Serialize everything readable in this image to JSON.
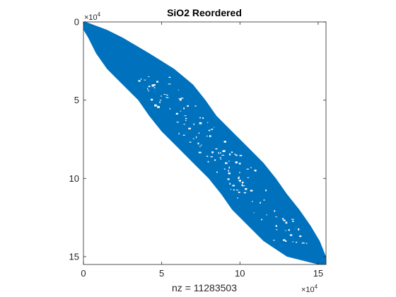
{
  "chart_data": {
    "type": "spy",
    "title": "SiO2 Reordered",
    "xlabel": "nz = 11283503",
    "ylabel": "",
    "x_multiplier": "×10",
    "x_multiplier_exp": "4",
    "y_multiplier": "×10",
    "y_multiplier_exp": "4",
    "xlim": [
      0,
      15.5
    ],
    "ylim": [
      0,
      15.5
    ],
    "y_reversed": true,
    "xticks": [
      {
        "value": 0,
        "label": "0"
      },
      {
        "value": 5,
        "label": "5"
      },
      {
        "value": 10,
        "label": "10"
      },
      {
        "value": 15,
        "label": "15"
      }
    ],
    "yticks": [
      {
        "value": 0,
        "label": "0"
      },
      {
        "value": 5,
        "label": "5"
      },
      {
        "value": 10,
        "label": "10"
      },
      {
        "value": 15,
        "label": "15"
      }
    ],
    "color": "#0072bd",
    "band_profile": [
      {
        "row": 0.0,
        "col_start": 0.0,
        "col_end": 0.15
      },
      {
        "row": 0.5,
        "col_start": 0.0,
        "col_end": 1.5
      },
      {
        "row": 1.0,
        "col_start": 0.3,
        "col_end": 2.5
      },
      {
        "row": 2.0,
        "col_start": 0.8,
        "col_end": 4.2
      },
      {
        "row": 3.0,
        "col_start": 1.5,
        "col_end": 5.8
      },
      {
        "row": 4.0,
        "col_start": 2.5,
        "col_end": 7.0
      },
      {
        "row": 5.0,
        "col_start": 3.5,
        "col_end": 7.8
      },
      {
        "row": 6.0,
        "col_start": 4.2,
        "col_end": 8.5
      },
      {
        "row": 7.0,
        "col_start": 5.0,
        "col_end": 9.5
      },
      {
        "row": 8.0,
        "col_start": 6.0,
        "col_end": 10.5
      },
      {
        "row": 9.0,
        "col_start": 7.0,
        "col_end": 11.5
      },
      {
        "row": 10.0,
        "col_start": 8.0,
        "col_end": 12.3
      },
      {
        "row": 11.0,
        "col_start": 8.8,
        "col_end": 13.0
      },
      {
        "row": 12.0,
        "col_start": 9.5,
        "col_end": 13.8
      },
      {
        "row": 13.0,
        "col_start": 10.5,
        "col_end": 14.5
      },
      {
        "row": 14.0,
        "col_start": 11.5,
        "col_end": 15.1
      },
      {
        "row": 15.0,
        "col_start": 13.0,
        "col_end": 15.5
      },
      {
        "row": 15.5,
        "col_start": 15.0,
        "col_end": 15.5
      }
    ]
  }
}
